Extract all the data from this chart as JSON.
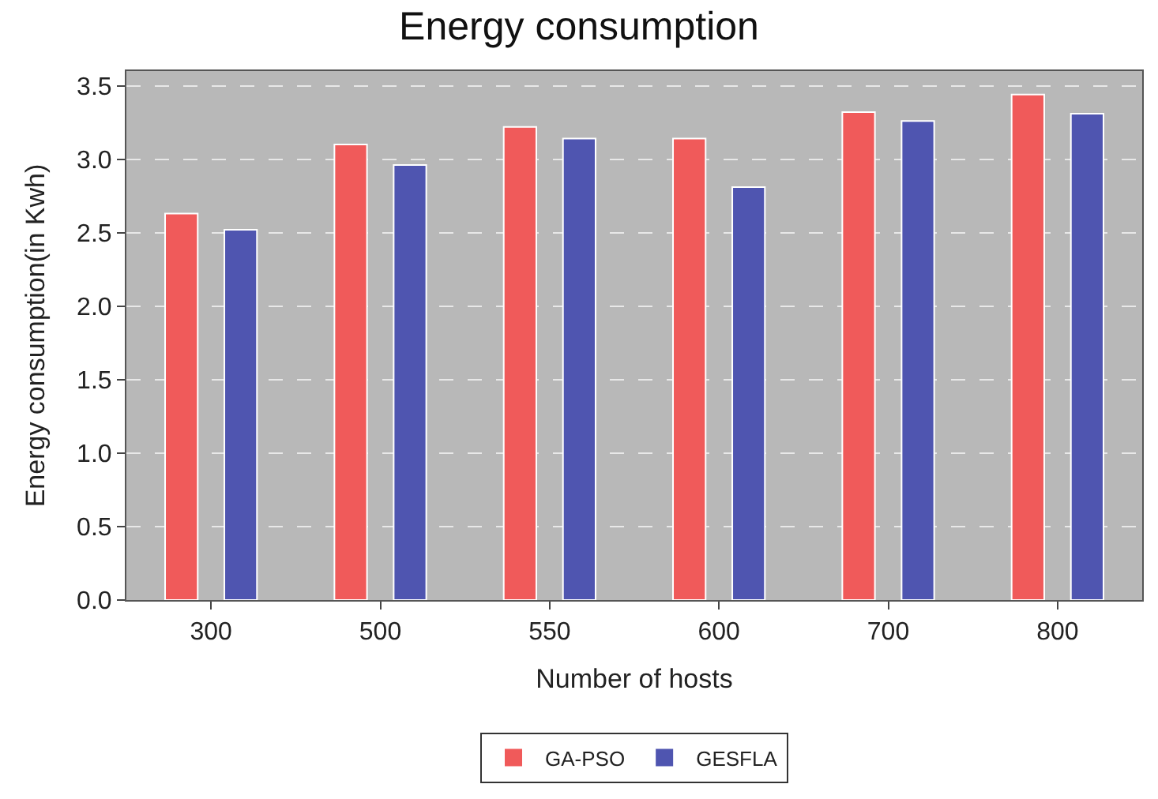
{
  "chart_data": {
    "type": "bar",
    "title": "Energy consumption",
    "xlabel": "Number of hosts",
    "ylabel": "Energy consumption(in Kwh)",
    "categories": [
      "300",
      "500",
      "550",
      "600",
      "700",
      "800"
    ],
    "series": [
      {
        "name": "GA-PSO",
        "color": "#f05a5a",
        "values": [
          2.63,
          3.1,
          3.22,
          3.14,
          3.32,
          3.44
        ]
      },
      {
        "name": "GESFLA",
        "color": "#4f55b0",
        "values": [
          2.52,
          2.96,
          3.14,
          2.81,
          3.26,
          3.31
        ]
      }
    ],
    "ylim": [
      0,
      3.6
    ],
    "yticks": [
      {
        "value": 0,
        "label": "0.0"
      },
      0.5,
      {
        "value": 1,
        "label": "1.0"
      },
      1.5,
      {
        "value": 2,
        "label": "2.0"
      },
      2.5,
      {
        "value": 3,
        "label": "3.0"
      },
      3.5
    ],
    "grid": "y",
    "legend": "bottom"
  }
}
